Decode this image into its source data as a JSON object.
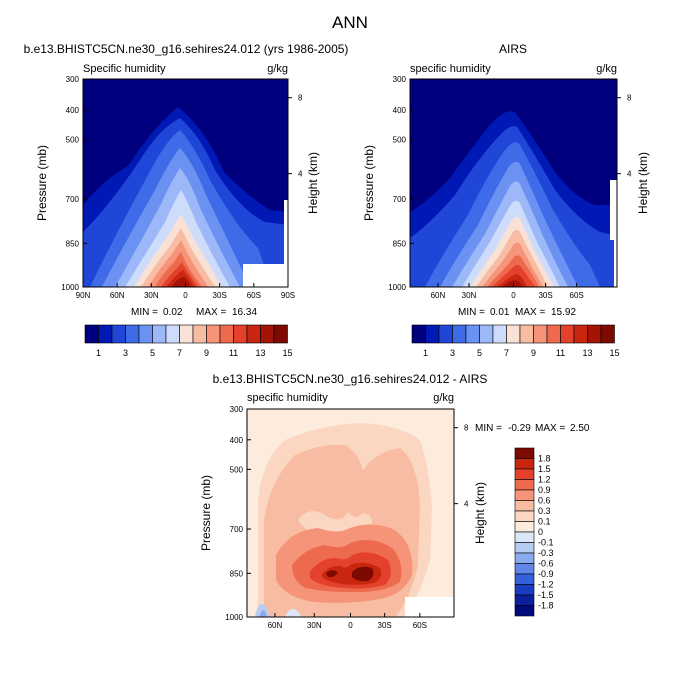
{
  "page_title": "ANN",
  "chart_data": [
    {
      "type": "heatmap",
      "title": "b.e13.BHISTC5CN.ne30_g16.sehires24.012 (yrs 1986-2005)",
      "variable": "Specific humidity",
      "units": "g/kg",
      "xlabel": "",
      "ylabel": "Pressure (mb)",
      "right_label": "Height (km)",
      "x_ticks": [
        "90N",
        "60N",
        "30N",
        "0",
        "30S",
        "60S",
        "90S"
      ],
      "y_ticks": [
        "300",
        "400",
        "500",
        "700",
        "850",
        "1000"
      ],
      "right_ticks": [
        "8",
        "4"
      ],
      "stats": {
        "min_label": "MIN =",
        "min": "0.02",
        "max_label": "MAX =",
        "max": "16.34"
      },
      "colorbar": {
        "levels": [
          "1",
          "3",
          "5",
          "7",
          "9",
          "11",
          "13",
          "15"
        ],
        "colors": [
          "#00007f",
          "#0018b4",
          "#1f46d6",
          "#3f6be8",
          "#6b92f2",
          "#9cb8f8",
          "#cedcfb",
          "#f9e1d6",
          "#f8bca3",
          "#f59479",
          "#ee6a4e",
          "#e3412b",
          "#c9260f",
          "#a41305",
          "#7d0a00"
        ]
      }
    },
    {
      "type": "heatmap",
      "title": "AIRS",
      "variable": "specific humidity",
      "units": "g/kg",
      "xlabel": "",
      "ylabel": "Pressure (mb)",
      "right_label": "Height (km)",
      "x_ticks": [
        "60N",
        "30N",
        "0",
        "30S",
        "60S"
      ],
      "y_ticks": [
        "300",
        "400",
        "500",
        "700",
        "850",
        "1000"
      ],
      "right_ticks": [
        "8",
        "4"
      ],
      "stats": {
        "min_label": "MIN =",
        "min": "0.01",
        "max_label": "MAX =",
        "max": "15.92"
      },
      "colorbar": {
        "levels": [
          "1",
          "3",
          "5",
          "7",
          "9",
          "11",
          "13",
          "15"
        ],
        "colors": [
          "#00007f",
          "#0018b4",
          "#1f46d6",
          "#3f6be8",
          "#6b92f2",
          "#9cb8f8",
          "#cedcfb",
          "#f9e1d6",
          "#f8bca3",
          "#f59479",
          "#ee6a4e",
          "#e3412b",
          "#c9260f",
          "#a41305",
          "#7d0a00"
        ]
      }
    },
    {
      "type": "heatmap",
      "title": "b.e13.BHISTC5CN.ne30_g16.sehires24.012 - AIRS",
      "variable": "specific humidity",
      "units": "g/kg",
      "xlabel": "",
      "ylabel": "Pressure (mb)",
      "right_label": "Height (km)",
      "x_ticks": [
        "60N",
        "30N",
        "0",
        "30S",
        "60S"
      ],
      "y_ticks": [
        "300",
        "400",
        "500",
        "700",
        "850",
        "1000"
      ],
      "right_ticks": [
        "8",
        "4"
      ],
      "stats": {
        "min_label": "MIN =",
        "min": "-0.29",
        "max_label": "MAX =",
        "max": "2.50"
      },
      "colorbar": {
        "levels": [
          "1.8",
          "1.5",
          "1.2",
          "0.9",
          "0.6",
          "0.3",
          "0.1",
          "0",
          "-0.1",
          "-0.3",
          "-0.6",
          "-0.9",
          "-1.2",
          "-1.5",
          "-1.8"
        ],
        "colors": [
          "#7d0a00",
          "#c9260f",
          "#e3412b",
          "#ee6a4e",
          "#f59479",
          "#f8bca3",
          "#fbd7c2",
          "#fdebdd",
          "#dbe6f7",
          "#b6cdf3",
          "#8aaaf0",
          "#5f86e8",
          "#3460db",
          "#1a3cc0",
          "#0b1f9c",
          "#000a7d"
        ]
      }
    }
  ]
}
